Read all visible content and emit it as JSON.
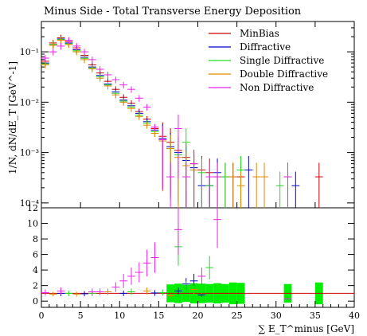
{
  "chart_data": [
    {
      "type": "scatter",
      "title": "Minus Side - Total Transverse Energy Deposition",
      "ylabel": "1/N, dN/dE_T [GeV^-1]",
      "y_scale": "log",
      "ylim": [
        8e-05,
        0.4
      ],
      "xlim": [
        0,
        40
      ],
      "y_ticks": [
        {
          "value": 0.0001,
          "label": "10⁻⁴"
        },
        {
          "value": 0.001,
          "label": "10⁻³"
        },
        {
          "value": 0.01,
          "label": "10⁻²"
        },
        {
          "value": 0.1,
          "label": "10⁻¹"
        }
      ],
      "legend_position": "top-right",
      "series": [
        {
          "name": "MinBias",
          "color": "#cc0000",
          "points": [
            [
              0.5,
              0.065
            ],
            [
              1.5,
              0.15
            ],
            [
              2.5,
              0.19
            ],
            [
              3.5,
              0.16
            ],
            [
              4.5,
              0.12
            ],
            [
              5.5,
              0.085
            ],
            [
              6.5,
              0.055
            ],
            [
              7.5,
              0.038
            ],
            [
              8.5,
              0.026
            ],
            [
              9.5,
              0.018
            ],
            [
              10.5,
              0.0125
            ],
            [
              11.5,
              0.0095
            ],
            [
              12.5,
              0.0065
            ],
            [
              13.5,
              0.0046
            ],
            [
              14.5,
              0.003
            ],
            [
              15.5,
              0.0021
            ],
            [
              16.5,
              0.0016
            ],
            [
              17.5,
              0.0011
            ],
            [
              18.5,
              0.0008
            ],
            [
              19.5,
              0.0006
            ],
            [
              20.5,
              0.00045
            ],
            [
              21.5,
              0.0004
            ],
            [
              22.5,
              0.00033
            ],
            [
              23.5,
              0.00033
            ],
            [
              25.5,
              0.00033
            ],
            [
              35.5,
              0.00033
            ]
          ]
        },
        {
          "name": "Diffractive",
          "color": "#0000cc",
          "points": [
            [
              0.5,
              0.06
            ],
            [
              1.5,
              0.14
            ],
            [
              2.5,
              0.18
            ],
            [
              3.5,
              0.15
            ],
            [
              4.5,
              0.11
            ],
            [
              5.5,
              0.078
            ],
            [
              6.5,
              0.05
            ],
            [
              7.5,
              0.034
            ],
            [
              8.5,
              0.023
            ],
            [
              9.5,
              0.016
            ],
            [
              10.5,
              0.011
            ],
            [
              11.5,
              0.0085
            ],
            [
              12.5,
              0.006
            ],
            [
              13.5,
              0.0041
            ],
            [
              14.5,
              0.0028
            ],
            [
              15.5,
              0.0019
            ],
            [
              16.5,
              0.0013
            ],
            [
              17.5,
              0.001
            ],
            [
              18.5,
              0.0007
            ],
            [
              19.5,
              0.0005
            ],
            [
              20.5,
              0.00022
            ],
            [
              21.5,
              0.00022
            ],
            [
              22.5,
              0.0004
            ],
            [
              24.5,
              0.00033
            ],
            [
              26.5,
              0.00045
            ],
            [
              32.5,
              0.00022
            ]
          ]
        },
        {
          "name": "Single Diffractive",
          "color": "#22dd22",
          "points": [
            [
              0.5,
              0.058
            ],
            [
              1.5,
              0.14
            ],
            [
              2.5,
              0.175
            ],
            [
              3.5,
              0.145
            ],
            [
              4.5,
              0.105
            ],
            [
              5.5,
              0.074
            ],
            [
              6.5,
              0.048
            ],
            [
              7.5,
              0.032
            ],
            [
              8.5,
              0.022
            ],
            [
              9.5,
              0.015
            ],
            [
              10.5,
              0.0105
            ],
            [
              11.5,
              0.008
            ],
            [
              12.5,
              0.0055
            ],
            [
              13.5,
              0.0038
            ],
            [
              14.5,
              0.0026
            ],
            [
              15.5,
              0.0018
            ],
            [
              16.5,
              0.0012
            ],
            [
              17.5,
              0.0009
            ],
            [
              18.5,
              0.0016
            ],
            [
              19.5,
              0.00045
            ],
            [
              20.5,
              0.0004
            ],
            [
              21.5,
              0.00022
            ],
            [
              23.5,
              0.00033
            ],
            [
              25.5,
              0.00045
            ],
            [
              30.5,
              0.00022
            ],
            [
              31.5,
              0.00033
            ]
          ]
        },
        {
          "name": "Double Diffractive",
          "color": "#e08a00",
          "points": [
            [
              0.5,
              0.055
            ],
            [
              1.5,
              0.135
            ],
            [
              2.5,
              0.17
            ],
            [
              3.5,
              0.14
            ],
            [
              4.5,
              0.1
            ],
            [
              5.5,
              0.07
            ],
            [
              6.5,
              0.046
            ],
            [
              7.5,
              0.03
            ],
            [
              8.5,
              0.021
            ],
            [
              9.5,
              0.014
            ],
            [
              10.5,
              0.01
            ],
            [
              11.5,
              0.0075
            ],
            [
              12.5,
              0.0052
            ],
            [
              13.5,
              0.0035
            ],
            [
              14.5,
              0.0024
            ],
            [
              15.5,
              0.0017
            ],
            [
              16.5,
              0.0012
            ],
            [
              17.5,
              0.0008
            ],
            [
              18.5,
              0.00055
            ],
            [
              19.5,
              0.00045
            ],
            [
              22.5,
              0.00033
            ],
            [
              24.5,
              0.00033
            ],
            [
              25.5,
              0.00022
            ],
            [
              27.5,
              0.00033
            ],
            [
              28.5,
              0.00033
            ]
          ]
        },
        {
          "name": "Non Diffractive",
          "color": "#ee22ee",
          "points": [
            [
              0.5,
              0.075
            ],
            [
              1.5,
              0.1
            ],
            [
              2.5,
              0.13
            ],
            [
              3.5,
              0.17
            ],
            [
              4.5,
              0.13
            ],
            [
              5.5,
              0.1
            ],
            [
              6.5,
              0.07
            ],
            [
              7.5,
              0.045
            ],
            [
              8.5,
              0.035
            ],
            [
              9.5,
              0.028
            ],
            [
              10.5,
              0.022
            ],
            [
              11.5,
              0.018
            ],
            [
              12.5,
              0.012
            ],
            [
              13.5,
              0.008
            ],
            [
              14.5,
              0.0032
            ],
            [
              15.5,
              0.0018
            ],
            [
              16.5,
              0.00033
            ],
            [
              17.5,
              0.003
            ],
            [
              18.5,
              0.00033
            ],
            [
              19.5,
              0.0006
            ],
            [
              21.5,
              0.00033
            ],
            [
              22.5,
              0.00033
            ],
            [
              31.5,
              0.00033
            ]
          ]
        }
      ]
    },
    {
      "type": "scatter",
      "title": "",
      "xlabel": "∑ E_T^minus [GeV]",
      "xlim": [
        0,
        40
      ],
      "ylim": [
        -0.8,
        12
      ],
      "x_ticks": [
        0,
        5,
        10,
        15,
        20,
        25,
        30,
        35,
        40
      ],
      "y_ticks": [
        0,
        2,
        4,
        6,
        8,
        10,
        12
      ],
      "reference_line": 1,
      "band_color": "#00ee00",
      "band": [
        [
          16.5,
          1.15
        ],
        [
          17.5,
          1.25
        ],
        [
          18.5,
          1.1
        ],
        [
          19.5,
          1.3
        ],
        [
          20.5,
          1.25
        ],
        [
          21.5,
          1.2
        ],
        [
          22.5,
          1.3
        ],
        [
          23.5,
          1.2
        ],
        [
          24.5,
          1.4
        ],
        [
          25.5,
          1.35
        ],
        [
          31.5,
          1.2
        ],
        [
          35.5,
          1.4
        ]
      ],
      "series": [
        {
          "name": "Diffractive",
          "color": "#0000cc",
          "values": [
            [
              2.5,
              1.0
            ],
            [
              5.5,
              0.95
            ],
            [
              10.5,
              1.0
            ],
            [
              14.5,
              1.05
            ],
            [
              17.5,
              1.3
            ],
            [
              18.5,
              2.2
            ],
            [
              19.5,
              2.6
            ],
            [
              20.5,
              0.8
            ]
          ]
        },
        {
          "name": "Single Diffractive",
          "color": "#22dd22",
          "values": [
            [
              3.5,
              1.0
            ],
            [
              6.5,
              1.0
            ],
            [
              11.5,
              1.2
            ],
            [
              15.5,
              1.1
            ],
            [
              17.5,
              7.0
            ],
            [
              18.5,
              1.9
            ],
            [
              19.5,
              1.2
            ],
            [
              20.5,
              1.4
            ],
            [
              21.5,
              4.3
            ]
          ]
        },
        {
          "name": "Double Diffractive",
          "color": "#e08a00",
          "values": [
            [
              1.5,
              0.9
            ],
            [
              4.5,
              0.9
            ],
            [
              8.5,
              1.2
            ],
            [
              13.5,
              1.3
            ],
            [
              16.5,
              0.7
            ],
            [
              19.5,
              1.5
            ]
          ]
        },
        {
          "name": "Non Diffractive",
          "color": "#ee22ee",
          "values": [
            [
              0.5,
              1.1
            ],
            [
              2.5,
              1.3
            ],
            [
              6.5,
              1.2
            ],
            [
              7.5,
              1.2
            ],
            [
              9.5,
              1.8
            ],
            [
              10.5,
              2.6
            ],
            [
              11.5,
              3.2
            ],
            [
              12.5,
              3.7
            ],
            [
              13.5,
              4.9
            ],
            [
              14.5,
              5.6
            ],
            [
              17.5,
              9.2
            ],
            [
              20.5,
              3.2
            ],
            [
              22.5,
              10.5
            ],
            [
              31.5,
              0.3
            ]
          ]
        }
      ]
    }
  ]
}
